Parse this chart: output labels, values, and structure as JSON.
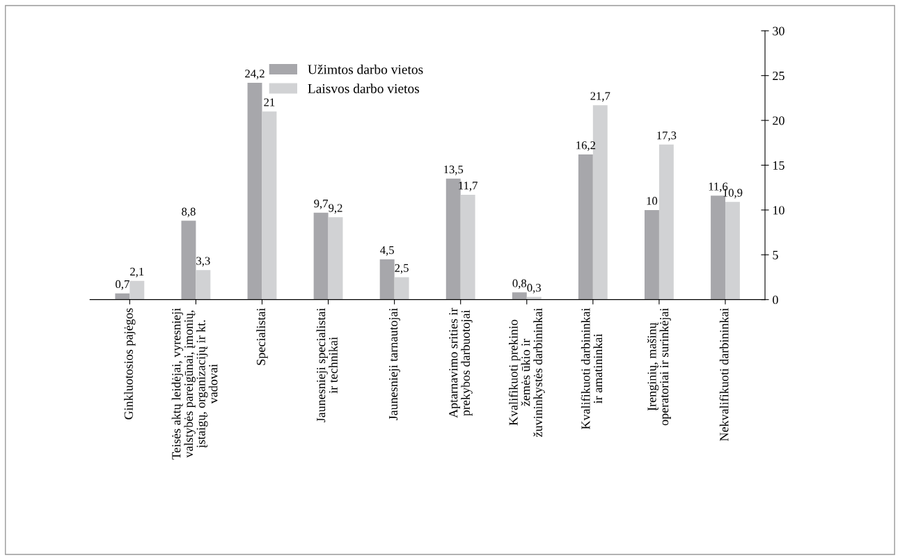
{
  "chart_data": {
    "type": "bar",
    "categories": [
      "Ginkluotosios pajėgos",
      "Teisės aktų leidėjai, vyresnieji\nvalstybės pareigūnai, įmonių,\nįstaigų, organizacijų ir kt.\nvadovai",
      "Specialistai",
      "Jaunesnieji specialistai\nir technikai",
      "Jaunesnieji tarnautojai",
      "Aptarnavimo srities ir\nprekybos darbuotojai",
      "Kvalifikuoti prekinio\nžemės ūkio ir\nžuvininkystės darbininkai",
      "Kvalifikuoti darbininkai\nir amatininkai",
      "Įrenginių, mašinų\noperatoriai ir surinkėjai",
      "Nekvalifikuoti darbininkai"
    ],
    "series": [
      {
        "name": "Užimtos darbo vietos",
        "color": "#a7a7ab",
        "values": [
          0.7,
          8.8,
          24.2,
          9.7,
          4.5,
          13.5,
          0.8,
          16.2,
          10,
          11.6
        ],
        "value_labels": [
          "0,7",
          "8,8",
          "24,2",
          "9,7",
          "4,5",
          "13,5",
          "0,8",
          "16,2",
          "10",
          "11,6"
        ]
      },
      {
        "name": "Laisvos darbo vietos",
        "color": "#d1d2d4",
        "values": [
          2.1,
          3.3,
          21,
          9.2,
          2.5,
          11.7,
          0.3,
          21.7,
          17.3,
          10.9
        ],
        "value_labels": [
          "2,1",
          "3,3",
          "21",
          "9,2",
          "2,5",
          "11,7",
          "0,3",
          "21,7",
          "17,3",
          "10,9"
        ]
      }
    ],
    "ylim": [
      0,
      30
    ],
    "yticks": [
      0,
      5,
      10,
      15,
      20,
      25,
      30
    ],
    "grid": false,
    "legend": "top"
  }
}
